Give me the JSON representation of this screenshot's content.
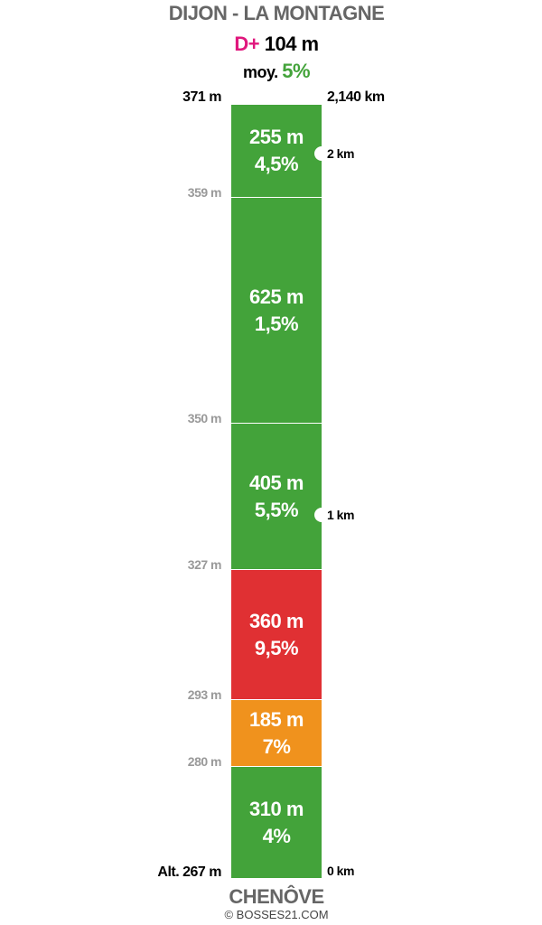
{
  "header": {
    "title": "DIJON - LA MONTAGNE",
    "gain_label": "D+",
    "gain": "104 m",
    "avg_label": "moy.",
    "avg": "5%"
  },
  "top": {
    "altitude": "371 m",
    "distance": "2,140 km"
  },
  "segments": [
    {
      "length": "255 m",
      "grade": "4,5%",
      "color": "#43a33a",
      "bottom_altitude": "359 m"
    },
    {
      "length": "625 m",
      "grade": "1,5%",
      "color": "#43a33a",
      "bottom_altitude": "350 m"
    },
    {
      "length": "405 m",
      "grade": "5,5%",
      "color": "#43a33a",
      "bottom_altitude": "327 m"
    },
    {
      "length": "360 m",
      "grade": "9,5%",
      "color": "#e03033",
      "bottom_altitude": "293 m"
    },
    {
      "length": "185 m",
      "grade": "7%",
      "color": "#f0921d",
      "bottom_altitude": "280 m"
    },
    {
      "length": "310 m",
      "grade": "4%",
      "color": "#43a33a",
      "bottom_altitude": "Alt. 267 m"
    }
  ],
  "km_markers": [
    "2 km",
    "1 km"
  ],
  "start_distance": "0 km",
  "footer": {
    "town": "CHENÔVE",
    "credit": "© BOSSES21.COM"
  }
}
